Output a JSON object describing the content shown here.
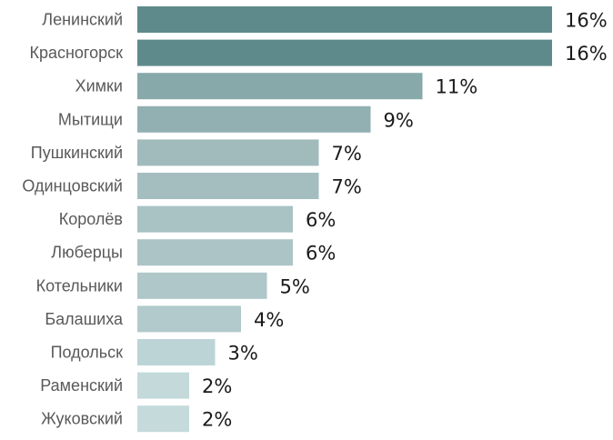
{
  "chart_data": {
    "type": "bar",
    "orientation": "horizontal",
    "categories": [
      "Ленинский",
      "Красногорск",
      "Химки",
      "Мытищи",
      "Пушкинский",
      "Одинцовский",
      "Королёв",
      "Люберцы",
      "Котельники",
      "Балашиха",
      "Подольск",
      "Раменский",
      "Жуковский"
    ],
    "values": [
      16,
      16,
      11,
      9,
      7,
      7,
      6,
      6,
      5,
      4,
      3,
      2,
      2
    ],
    "value_labels": [
      "16%",
      "16%",
      "11%",
      "9%",
      "7%",
      "7%",
      "6%",
      "6%",
      "5%",
      "4%",
      "3%",
      "2%",
      "2%"
    ],
    "title": "",
    "xlabel": "",
    "ylabel": "",
    "grid": false,
    "legend": "none",
    "bar_colors": [
      "#5f8a8b",
      "#5f8a8b",
      "#87a9aa",
      "#92b0b2",
      "#a1bbbd",
      "#a4bec0",
      "#a9c2c4",
      "#acc4c6",
      "#afc7c9",
      "#b2cacb",
      "#bcd4d6",
      "#c3d9da",
      "#c5dadb"
    ]
  }
}
